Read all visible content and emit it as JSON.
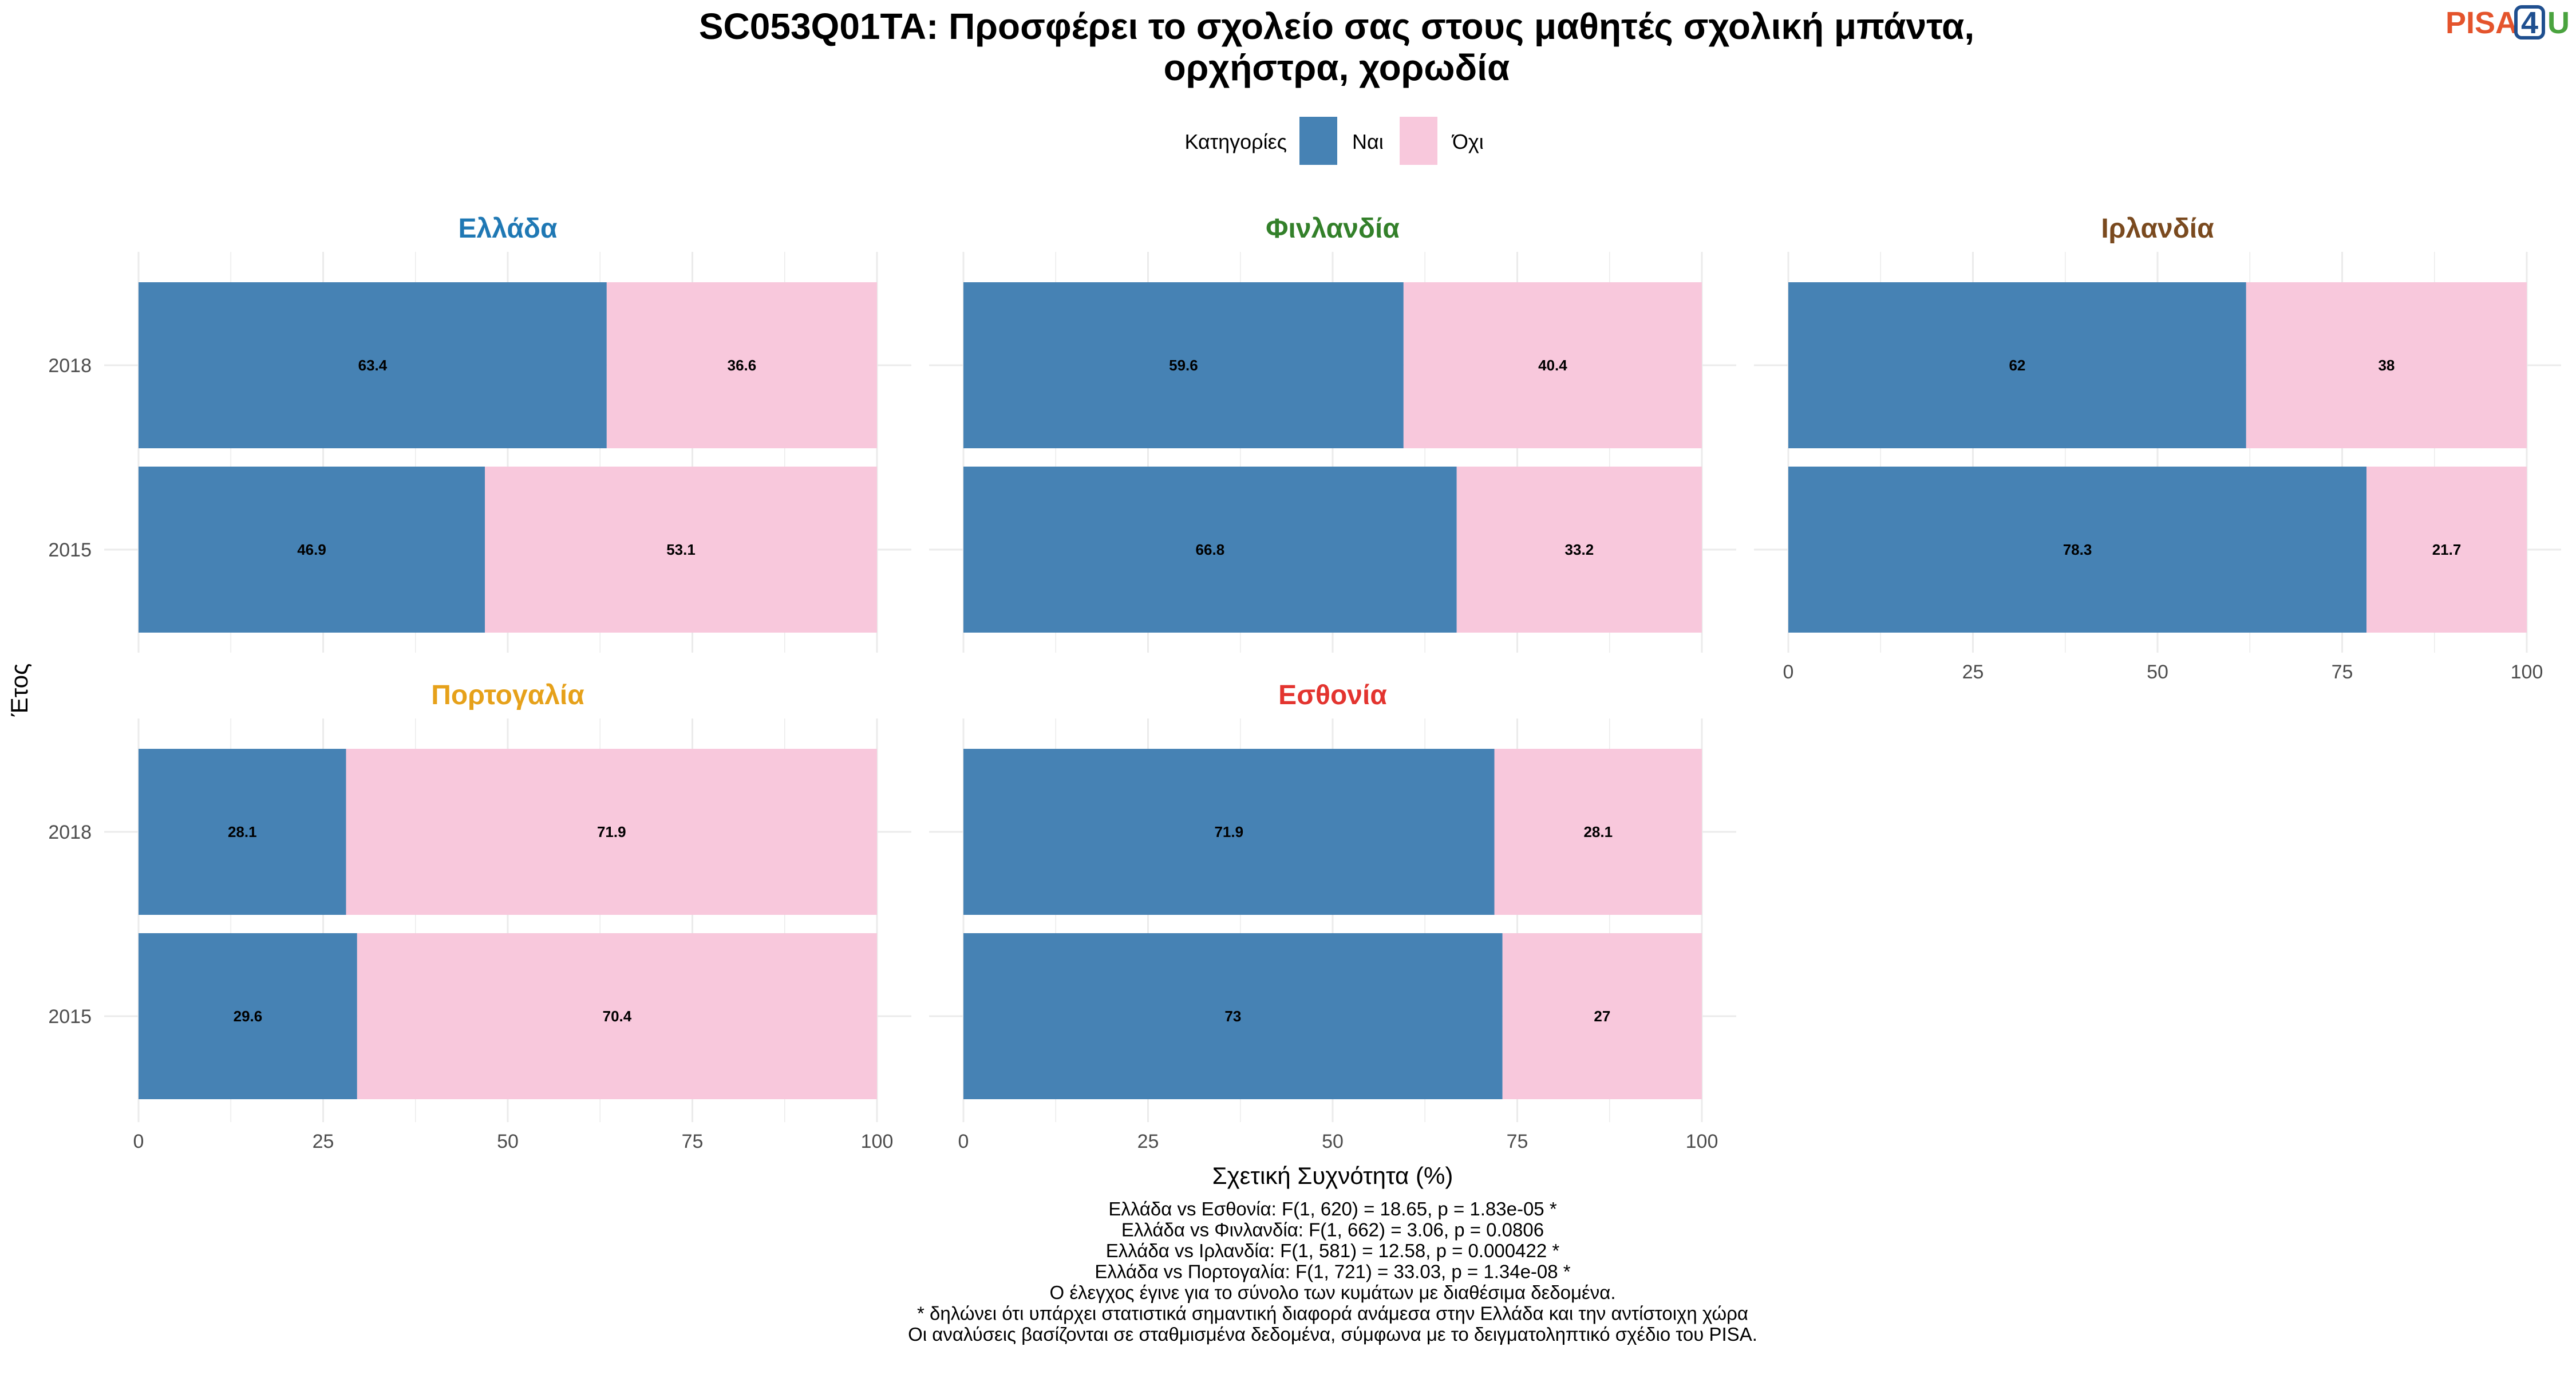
{
  "logo": {
    "part1": "PISA",
    "part2": "4",
    "part3": "U",
    "color1": "#e4542c",
    "color2": "#1f4f8f",
    "color3": "#4aa33f"
  },
  "chart_data": {
    "type": "bar",
    "orientation": "horizontal-stacked",
    "title_lines": [
      "SC053Q01TA: Προσφέρει το σχολείο σας στους μαθητές σχολική μπάντα,",
      "ορχήστρα, χορωδία"
    ],
    "legend": {
      "title": "Κατηγορίες",
      "position": "top",
      "entries": [
        {
          "name": "Ναι",
          "color": "#4682b4"
        },
        {
          "name": "Όχι",
          "color": "#f8c8dc"
        }
      ]
    },
    "xlabel": "Σχετική Συχνότητα (%)",
    "ylabel": "Έτος",
    "xlim": [
      0,
      100
    ],
    "xticks": [
      "0",
      "25",
      "50",
      "75",
      "100"
    ],
    "categories": [
      "2018",
      "2015"
    ],
    "grid": true,
    "panels": [
      {
        "name": "Ελλάδα",
        "color": "#1f78b4",
        "rows": [
          {
            "year": "2018",
            "values": [
              63.4,
              36.6
            ]
          },
          {
            "year": "2015",
            "values": [
              46.9,
              53.1
            ]
          }
        ]
      },
      {
        "name": "Φινλανδία",
        "color": "#33802a",
        "rows": [
          {
            "year": "2018",
            "values": [
              59.6,
              40.4
            ]
          },
          {
            "year": "2015",
            "values": [
              66.8,
              33.2
            ]
          }
        ]
      },
      {
        "name": "Ιρλανδία",
        "color": "#7a4a1f",
        "rows": [
          {
            "year": "2018",
            "values": [
              62,
              38
            ]
          },
          {
            "year": "2015",
            "values": [
              78.3,
              21.7
            ]
          }
        ]
      },
      {
        "name": "Πορτογαλία",
        "color": "#e6a11a",
        "rows": [
          {
            "year": "2018",
            "values": [
              28.1,
              71.9
            ]
          },
          {
            "year": "2015",
            "values": [
              29.6,
              70.4
            ]
          }
        ]
      },
      {
        "name": "Εσθονία",
        "color": "#e3342f",
        "rows": [
          {
            "year": "2018",
            "values": [
              71.9,
              28.1
            ]
          },
          {
            "year": "2015",
            "values": [
              73,
              27
            ]
          }
        ]
      }
    ],
    "footnotes": [
      "Ελλάδα vs Εσθονία: F(1, 620) = 18.65, p = 1.83e-05 *",
      "Ελλάδα vs Φινλανδία: F(1, 662) = 3.06, p = 0.0806",
      "Ελλάδα vs Ιρλανδία: F(1, 581) = 12.58, p = 0.000422 *",
      "Ελλάδα vs Πορτογαλία: F(1, 721) = 33.03, p = 1.34e-08 *",
      "Ο έλεγχος έγινε για το σύνολο των κυμάτων με διαθέσιμα δεδομένα.",
      "* δηλώνει ότι υπάρχει στατιστικά σημαντική διαφορά ανάμεσα στην Ελλάδα και την αντίστοιχη χώρα",
      "Οι αναλύσεις βασίζονται σε σταθμισμένα δεδομένα, σύμφωνα με το δειγματοληπτικό σχέδιο του PISA."
    ]
  }
}
